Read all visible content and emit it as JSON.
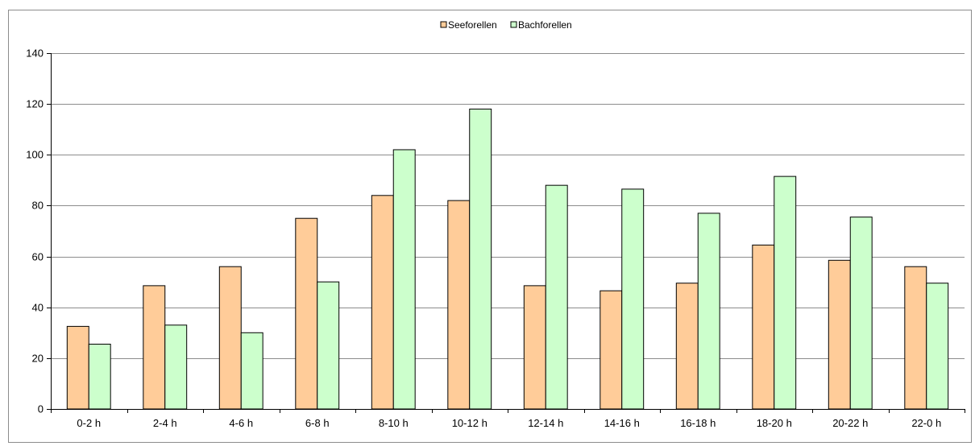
{
  "chart_data": {
    "type": "bar",
    "categories": [
      "0-2 h",
      "2-4 h",
      "4-6 h",
      "6-8 h",
      "8-10 h",
      "10-12 h",
      "12-14 h",
      "14-16 h",
      "16-18 h",
      "18-20 h",
      "20-22 h",
      "22-0 h"
    ],
    "series": [
      {
        "name": "Seeforellen",
        "color": "#FFCC99",
        "values": [
          32.5,
          48.5,
          56,
          75,
          84,
          82,
          48.5,
          46.5,
          49.5,
          64.5,
          58.5,
          56
        ]
      },
      {
        "name": "Bachforellen",
        "color": "#CCFFCC",
        "values": [
          25.5,
          33,
          30,
          50,
          102,
          118,
          88,
          86.5,
          77,
          91.5,
          75.5,
          49.5
        ]
      }
    ],
    "yticks": [
      0,
      20,
      40,
      60,
      80,
      100,
      120,
      140
    ],
    "ylim": [
      0,
      140
    ],
    "grid": true,
    "legend_position": "top-center"
  }
}
